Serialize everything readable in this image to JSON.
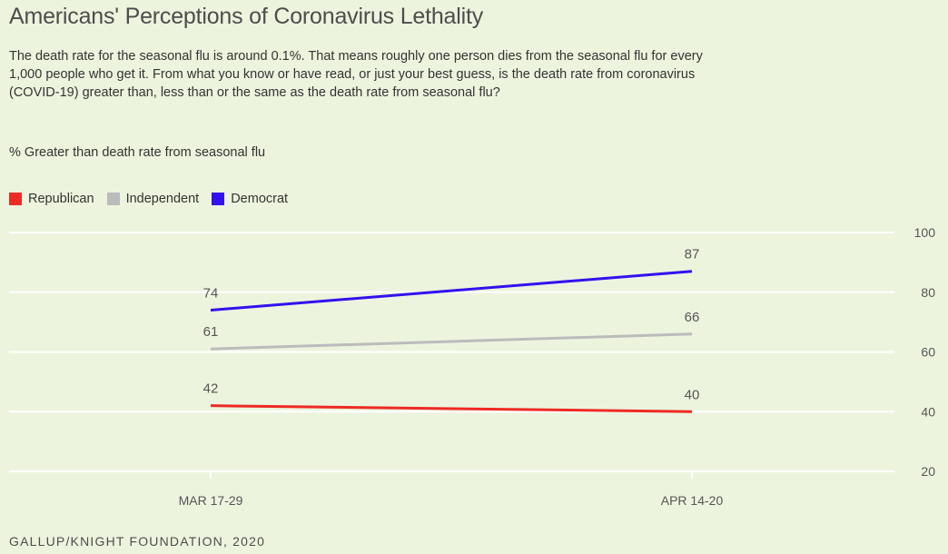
{
  "title": "Americans' Perceptions of Coronavirus Lethality",
  "subtitle": "The death rate for the seasonal flu is around 0.1%. That means roughly one person dies from the seasonal flu for every 1,000 people who get it. From what you know or have read, or just your best guess, is the death rate from coronavirus (COVID-19) greater than, less than or the same as the death rate from seasonal flu?",
  "metric_label": "% Greater than death rate from seasonal flu",
  "source": "GALLUP/KNIGHT FOUNDATION, 2020",
  "colors": {
    "Republican": "#ee2a24",
    "Independent": "#bbbbbb",
    "Democrat": "#3211ee",
    "grid": "#ffffff"
  },
  "chart_data": {
    "type": "line",
    "title": "Americans' Perceptions of Coronavirus Lethality",
    "xlabel": "",
    "ylabel": "% Greater than death rate from seasonal flu",
    "categories": [
      "MAR 17-29",
      "APR 14-20"
    ],
    "ylim": [
      20,
      100
    ],
    "yticks": [
      20,
      40,
      60,
      80,
      100
    ],
    "grid": true,
    "legend_position": "top-left",
    "series": [
      {
        "name": "Republican",
        "values": [
          42,
          40
        ]
      },
      {
        "name": "Independent",
        "values": [
          61,
          66
        ]
      },
      {
        "name": "Democrat",
        "values": [
          74,
          87
        ]
      }
    ]
  }
}
